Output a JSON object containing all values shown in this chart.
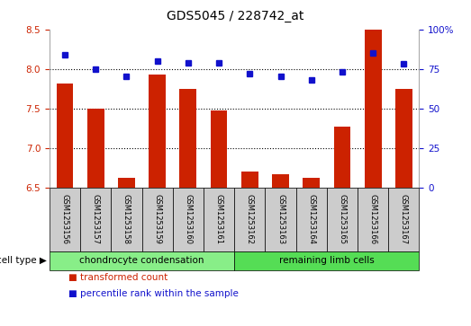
{
  "title": "GDS5045 / 228742_at",
  "samples": [
    "GSM1253156",
    "GSM1253157",
    "GSM1253158",
    "GSM1253159",
    "GSM1253160",
    "GSM1253161",
    "GSM1253162",
    "GSM1253163",
    "GSM1253164",
    "GSM1253165",
    "GSM1253166",
    "GSM1253167"
  ],
  "bar_values": [
    7.82,
    7.5,
    6.62,
    7.93,
    7.75,
    7.47,
    6.7,
    6.67,
    6.62,
    7.27,
    8.5,
    7.75
  ],
  "dot_values": [
    84,
    75,
    70,
    80,
    79,
    79,
    72,
    70,
    68,
    73,
    85,
    78
  ],
  "ylim_left": [
    6.5,
    8.5
  ],
  "ylim_right": [
    0,
    100
  ],
  "yticks_left": [
    6.5,
    7.0,
    7.5,
    8.0,
    8.5
  ],
  "yticks_right": [
    0,
    25,
    50,
    75,
    100
  ],
  "ytick_labels_right": [
    "0",
    "25",
    "50",
    "75",
    "100%"
  ],
  "bar_color": "#cc2200",
  "dot_color": "#1111cc",
  "grid_color": "#000000",
  "bg_color": "#ffffff",
  "box_color": "#cccccc",
  "cell_types": [
    {
      "label": "chondrocyte condensation",
      "start": 0,
      "end": 6,
      "color": "#88ee88"
    },
    {
      "label": "remaining limb cells",
      "start": 6,
      "end": 12,
      "color": "#55dd55"
    }
  ],
  "cell_type_label": "cell type",
  "arrow": "▶",
  "legend_bar_label": "transformed count",
  "legend_dot_label": "percentile rank within the sample",
  "title_fontsize": 10,
  "tick_fontsize": 7.5,
  "sample_fontsize": 6.0,
  "cell_fontsize": 7.5,
  "legend_fontsize": 7.5
}
